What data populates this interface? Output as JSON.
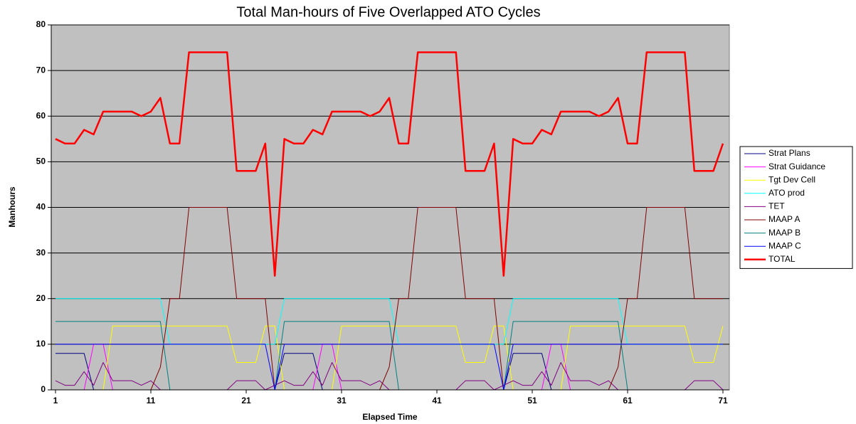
{
  "chart_data": {
    "type": "line",
    "title": "Total Man-hours of Five Overlapped ATO Cycles",
    "x_label": "Elapsed Time",
    "y_label": "Manhours",
    "x": [
      1,
      2,
      3,
      4,
      5,
      6,
      7,
      8,
      9,
      10,
      11,
      12,
      13,
      14,
      15,
      16,
      17,
      18,
      19,
      20,
      21,
      22,
      23,
      24,
      25,
      26,
      27,
      28,
      29,
      30,
      31,
      32,
      33,
      34,
      35,
      36,
      37,
      38,
      39,
      40,
      41,
      42,
      43,
      44,
      45,
      46,
      47,
      48,
      49,
      50,
      51,
      52,
      53,
      54,
      55,
      56,
      57,
      58,
      59,
      60,
      61,
      62,
      63,
      64,
      65,
      66,
      67,
      68,
      69,
      70,
      71
    ],
    "xlim": [
      1,
      71
    ],
    "xticks": [
      1,
      11,
      21,
      31,
      41,
      51,
      61,
      71
    ],
    "ylim": [
      0,
      80
    ],
    "yticks": [
      0,
      10,
      20,
      30,
      40,
      50,
      60,
      70,
      80
    ],
    "grid": true,
    "legend": "right",
    "series": [
      {
        "name": "Strat Plans",
        "color": "#000080",
        "values": [
          8,
          8,
          8,
          8,
          0,
          0,
          0,
          0,
          0,
          0,
          0,
          0,
          0,
          0,
          0,
          0,
          0,
          0,
          0,
          0,
          0,
          0,
          0,
          0,
          8,
          8,
          8,
          8,
          0,
          0,
          0,
          0,
          0,
          0,
          0,
          0,
          0,
          0,
          0,
          0,
          0,
          0,
          0,
          0,
          0,
          0,
          0,
          0,
          8,
          8,
          8,
          8,
          0,
          0,
          0,
          0,
          0,
          0,
          0,
          0,
          0,
          0,
          0,
          0,
          0,
          0,
          0,
          0,
          0,
          0,
          0
        ]
      },
      {
        "name": "Strat Guidance",
        "color": "#ff00ff",
        "values": [
          0,
          0,
          0,
          0,
          10,
          10,
          0,
          0,
          0,
          0,
          0,
          0,
          0,
          0,
          0,
          0,
          0,
          0,
          0,
          0,
          0,
          0,
          0,
          0,
          0,
          0,
          0,
          0,
          10,
          10,
          0,
          0,
          0,
          0,
          0,
          0,
          0,
          0,
          0,
          0,
          0,
          0,
          0,
          0,
          0,
          0,
          0,
          0,
          0,
          0,
          0,
          0,
          10,
          10,
          0,
          0,
          0,
          0,
          0,
          0,
          0,
          0,
          0,
          0,
          0,
          0,
          0,
          0,
          0,
          0,
          0
        ]
      },
      {
        "name": "Tgt Dev Cell",
        "color": "#ffff00",
        "values": [
          0,
          0,
          0,
          0,
          0,
          0,
          14,
          14,
          14,
          14,
          14,
          14,
          14,
          14,
          14,
          14,
          14,
          14,
          14,
          6,
          6,
          6,
          14,
          14,
          0,
          0,
          0,
          0,
          0,
          0,
          14,
          14,
          14,
          14,
          14,
          14,
          14,
          14,
          14,
          14,
          14,
          14,
          14,
          6,
          6,
          6,
          14,
          14,
          0,
          0,
          0,
          0,
          0,
          0,
          14,
          14,
          14,
          14,
          14,
          14,
          14,
          14,
          14,
          14,
          14,
          14,
          14,
          6,
          6,
          6,
          14
        ]
      },
      {
        "name": "ATO prod",
        "color": "#00ffff",
        "values": [
          20,
          20,
          20,
          20,
          20,
          20,
          20,
          20,
          20,
          20,
          20,
          20,
          10,
          10,
          10,
          10,
          10,
          10,
          10,
          10,
          10,
          10,
          10,
          10,
          20,
          20,
          20,
          20,
          20,
          20,
          20,
          20,
          20,
          20,
          20,
          20,
          10,
          10,
          10,
          10,
          10,
          10,
          10,
          10,
          10,
          10,
          10,
          10,
          20,
          20,
          20,
          20,
          20,
          20,
          20,
          20,
          20,
          20,
          20,
          20,
          10,
          10,
          10,
          10,
          10,
          10,
          10,
          10,
          10,
          10,
          10
        ]
      },
      {
        "name": "TET",
        "color": "#800080",
        "values": [
          2,
          1,
          1,
          4,
          1,
          6,
          2,
          2,
          2,
          1,
          2,
          0,
          0,
          0,
          0,
          0,
          0,
          0,
          0,
          2,
          2,
          2,
          0,
          1,
          2,
          1,
          1,
          4,
          1,
          6,
          2,
          2,
          2,
          1,
          2,
          0,
          0,
          0,
          0,
          0,
          0,
          0,
          0,
          2,
          2,
          2,
          0,
          1,
          2,
          1,
          1,
          4,
          1,
          6,
          2,
          2,
          2,
          1,
          2,
          0,
          0,
          0,
          0,
          0,
          0,
          0,
          0,
          2,
          2,
          2,
          0
        ]
      },
      {
        "name": "MAAP A",
        "color": "#800000",
        "values": [
          0,
          0,
          0,
          0,
          0,
          0,
          0,
          0,
          0,
          0,
          0,
          5,
          20,
          20,
          40,
          40,
          40,
          40,
          40,
          20,
          20,
          20,
          20,
          0,
          0,
          0,
          0,
          0,
          0,
          0,
          0,
          0,
          0,
          0,
          0,
          5,
          20,
          20,
          40,
          40,
          40,
          40,
          40,
          20,
          20,
          20,
          20,
          0,
          0,
          0,
          0,
          0,
          0,
          0,
          0,
          0,
          0,
          0,
          0,
          5,
          20,
          20,
          40,
          40,
          40,
          40,
          40,
          20,
          20,
          20,
          20
        ]
      },
      {
        "name": "MAAP B",
        "color": "#008080",
        "values": [
          15,
          15,
          15,
          15,
          15,
          15,
          15,
          15,
          15,
          15,
          15,
          15,
          0,
          0,
          0,
          0,
          0,
          0,
          0,
          0,
          0,
          0,
          0,
          0,
          15,
          15,
          15,
          15,
          15,
          15,
          15,
          15,
          15,
          15,
          15,
          15,
          0,
          0,
          0,
          0,
          0,
          0,
          0,
          0,
          0,
          0,
          0,
          0,
          15,
          15,
          15,
          15,
          15,
          15,
          15,
          15,
          15,
          15,
          15,
          15,
          0,
          0,
          0,
          0,
          0,
          0,
          0,
          0,
          0,
          0,
          0
        ]
      },
      {
        "name": "MAAP C",
        "color": "#0000ff",
        "values": [
          10,
          10,
          10,
          10,
          10,
          10,
          10,
          10,
          10,
          10,
          10,
          10,
          10,
          10,
          10,
          10,
          10,
          10,
          10,
          10,
          10,
          10,
          10,
          0,
          10,
          10,
          10,
          10,
          10,
          10,
          10,
          10,
          10,
          10,
          10,
          10,
          10,
          10,
          10,
          10,
          10,
          10,
          10,
          10,
          10,
          10,
          10,
          0,
          10,
          10,
          10,
          10,
          10,
          10,
          10,
          10,
          10,
          10,
          10,
          10,
          10,
          10,
          10,
          10,
          10,
          10,
          10,
          10,
          10,
          10,
          10
        ]
      },
      {
        "name": "TOTAL",
        "color": "#ff0000",
        "values": [
          55,
          54,
          54,
          57,
          56,
          61,
          61,
          61,
          61,
          60,
          61,
          64,
          54,
          54,
          74,
          74,
          74,
          74,
          74,
          48,
          48,
          48,
          54,
          25,
          55,
          54,
          54,
          57,
          56,
          61,
          61,
          61,
          61,
          60,
          61,
          64,
          54,
          54,
          74,
          74,
          74,
          74,
          74,
          48,
          48,
          48,
          54,
          25,
          55,
          54,
          54,
          57,
          56,
          61,
          61,
          61,
          61,
          60,
          61,
          64,
          54,
          54,
          74,
          74,
          74,
          74,
          74,
          48,
          48,
          48,
          54
        ]
      }
    ]
  }
}
